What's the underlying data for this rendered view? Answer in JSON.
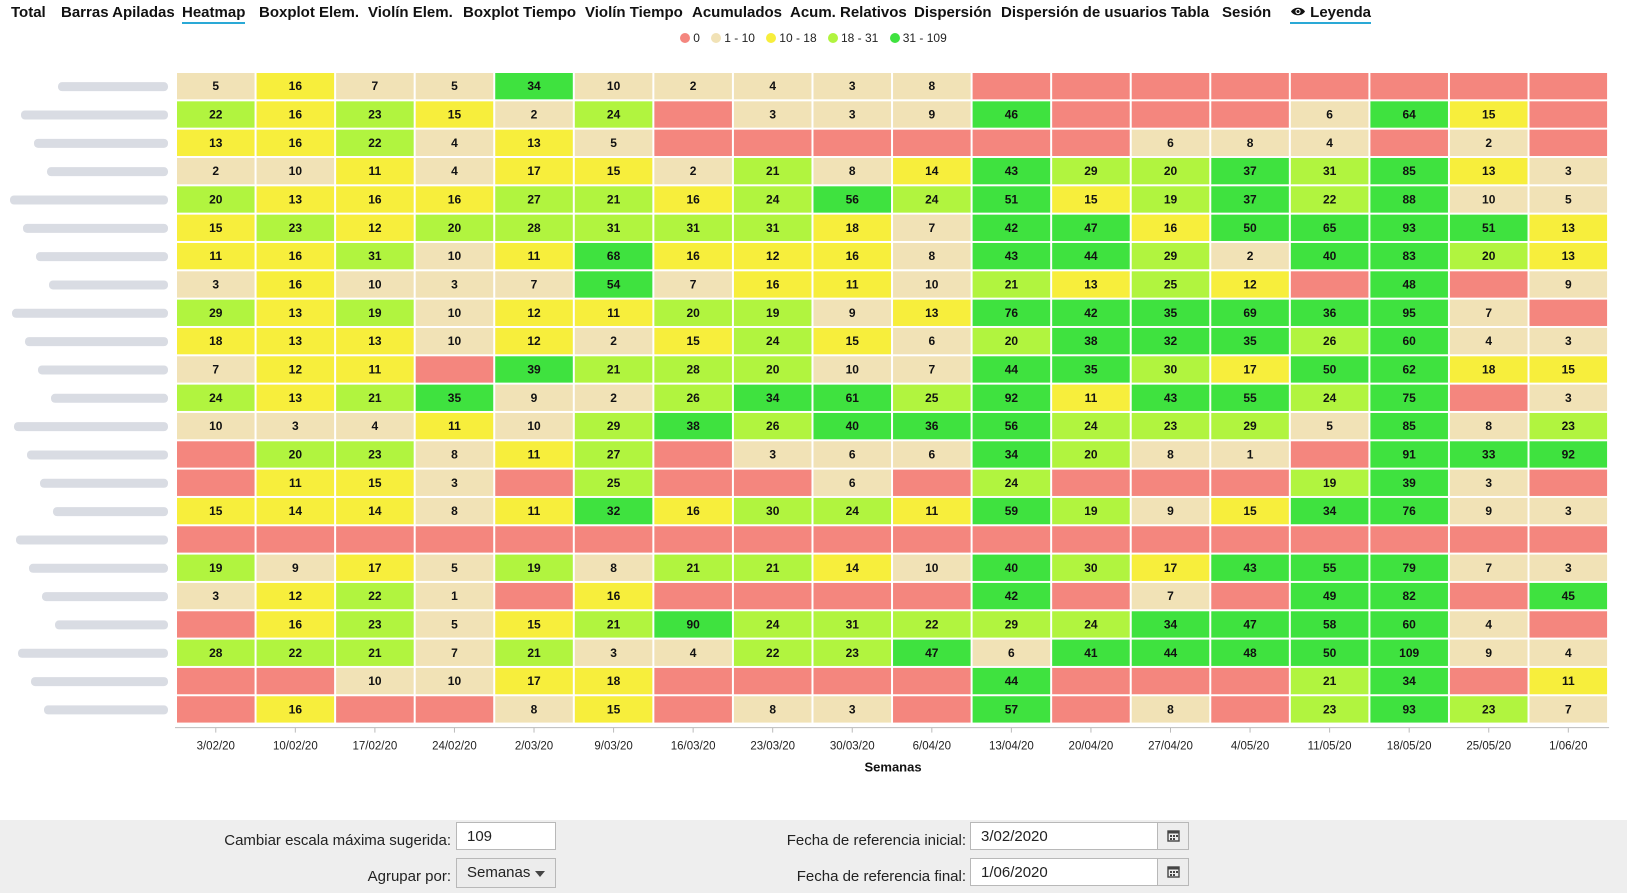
{
  "tabs": [
    {
      "label": "Total"
    },
    {
      "label": "Barras Apiladas"
    },
    {
      "label": "Heatmap",
      "active": true
    },
    {
      "label": "Boxplot Elem."
    },
    {
      "label": "Violín Elem."
    },
    {
      "label": "Boxplot Tiempo"
    },
    {
      "label": "Violín Tiempo"
    },
    {
      "label": "Acumulados"
    },
    {
      "label": "Acum. Relativos"
    },
    {
      "label": "Dispersión"
    },
    {
      "label": "Dispersión de usuarios"
    },
    {
      "label": "Tabla"
    },
    {
      "label": "Sesión"
    }
  ],
  "legend_toggle": {
    "label": "Leyenda",
    "icon": "eye-icon"
  },
  "legend": [
    {
      "label": "0",
      "color": "#f4867e"
    },
    {
      "label": "1 - 10",
      "color": "#f1e2b6"
    },
    {
      "label": "10 - 18",
      "color": "#f7ee3c"
    },
    {
      "label": "18 - 31",
      "color": "#b1f43f"
    },
    {
      "label": "31 - 109",
      "color": "#3fe23f"
    }
  ],
  "chart_data": {
    "type": "heatmap",
    "xlabel": "Semanas",
    "x": [
      "3/02/20",
      "10/02/20",
      "17/02/20",
      "24/02/20",
      "2/03/20",
      "9/03/20",
      "16/03/20",
      "23/03/20",
      "30/03/20",
      "6/04/20",
      "13/04/20",
      "20/04/20",
      "27/04/20",
      "4/05/20",
      "11/05/20",
      "18/05/20",
      "25/05/20",
      "1/06/20"
    ],
    "colors": [
      "#f4867e",
      "#f1e2b6",
      "#f7ee3c",
      "#b1f43f",
      "#3fe23f"
    ],
    "values": [
      [
        5,
        16,
        7,
        5,
        34,
        10,
        2,
        4,
        3,
        8,
        0,
        0,
        0,
        0,
        0,
        0,
        0,
        0
      ],
      [
        22,
        16,
        23,
        15,
        2,
        24,
        0,
        3,
        3,
        9,
        46,
        0,
        0,
        0,
        6,
        64,
        15,
        0
      ],
      [
        13,
        16,
        22,
        4,
        13,
        5,
        0,
        0,
        0,
        0,
        0,
        0,
        6,
        8,
        4,
        0,
        2,
        0
      ],
      [
        2,
        10,
        11,
        4,
        17,
        15,
        2,
        21,
        8,
        14,
        43,
        29,
        20,
        37,
        31,
        85,
        13,
        3
      ],
      [
        20,
        13,
        16,
        16,
        27,
        21,
        16,
        24,
        56,
        24,
        51,
        15,
        19,
        37,
        22,
        88,
        10,
        5
      ],
      [
        15,
        23,
        12,
        20,
        28,
        31,
        31,
        31,
        18,
        7,
        42,
        47,
        16,
        50,
        65,
        93,
        51,
        13
      ],
      [
        11,
        16,
        31,
        10,
        11,
        68,
        16,
        12,
        16,
        8,
        43,
        44,
        29,
        2,
        40,
        83,
        20,
        13
      ],
      [
        3,
        16,
        10,
        3,
        7,
        54,
        7,
        16,
        11,
        10,
        21,
        13,
        25,
        12,
        0,
        48,
        0,
        9
      ],
      [
        29,
        13,
        19,
        10,
        12,
        11,
        20,
        19,
        9,
        13,
        76,
        42,
        35,
        69,
        36,
        95,
        7,
        0
      ],
      [
        18,
        13,
        13,
        10,
        12,
        2,
        15,
        24,
        15,
        6,
        20,
        38,
        32,
        35,
        26,
        60,
        4,
        3
      ],
      [
        7,
        12,
        11,
        0,
        39,
        21,
        28,
        20,
        10,
        7,
        44,
        35,
        30,
        17,
        50,
        62,
        18,
        15
      ],
      [
        24,
        13,
        21,
        35,
        9,
        2,
        26,
        34,
        61,
        25,
        92,
        11,
        43,
        55,
        24,
        75,
        0,
        3
      ],
      [
        10,
        3,
        4,
        11,
        10,
        29,
        38,
        26,
        40,
        36,
        56,
        24,
        23,
        29,
        5,
        85,
        8,
        23
      ],
      [
        0,
        20,
        23,
        8,
        11,
        27,
        0,
        3,
        6,
        6,
        34,
        20,
        8,
        1,
        0,
        91,
        33,
        92
      ],
      [
        0,
        11,
        15,
        3,
        0,
        25,
        0,
        0,
        6,
        0,
        24,
        0,
        0,
        0,
        19,
        39,
        3,
        0
      ],
      [
        15,
        14,
        14,
        8,
        11,
        32,
        16,
        30,
        24,
        11,
        59,
        19,
        9,
        15,
        34,
        76,
        9,
        3
      ],
      [
        0,
        0,
        0,
        0,
        0,
        0,
        0,
        0,
        0,
        0,
        0,
        0,
        0,
        0,
        0,
        0,
        0,
        0
      ],
      [
        19,
        9,
        17,
        5,
        19,
        8,
        21,
        21,
        14,
        10,
        40,
        30,
        17,
        43,
        55,
        79,
        7,
        3
      ],
      [
        3,
        12,
        22,
        1,
        0,
        16,
        0,
        0,
        0,
        0,
        42,
        0,
        7,
        0,
        49,
        82,
        0,
        45
      ],
      [
        0,
        16,
        23,
        5,
        15,
        21,
        90,
        24,
        31,
        22,
        29,
        24,
        34,
        47,
        58,
        60,
        4,
        0
      ],
      [
        28,
        22,
        21,
        7,
        21,
        3,
        4,
        22,
        23,
        47,
        6,
        41,
        44,
        48,
        50,
        109,
        9,
        4
      ],
      [
        0,
        0,
        10,
        10,
        17,
        18,
        0,
        0,
        0,
        0,
        44,
        0,
        0,
        0,
        21,
        34,
        0,
        11
      ],
      [
        0,
        16,
        0,
        0,
        8,
        15,
        0,
        8,
        3,
        0,
        57,
        0,
        8,
        0,
        23,
        93,
        23,
        7
      ]
    ]
  },
  "controls": {
    "scale_label": "Cambiar escala máxima sugerida:",
    "scale_value": "109",
    "group_label": "Agrupar por:",
    "group_value": "Semanas",
    "start_label": "Fecha de referencia inicial:",
    "start_value": "3/02/2020",
    "end_label": "Fecha de referencia final:",
    "end_value": "1/06/2020"
  }
}
